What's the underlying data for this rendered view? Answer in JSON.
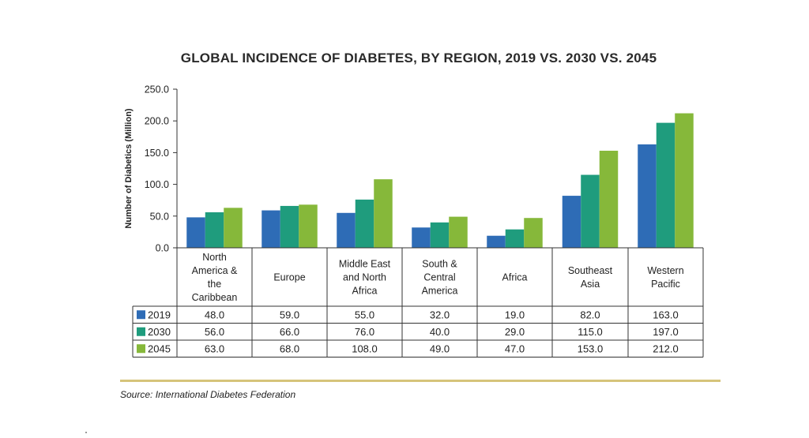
{
  "chart_data": {
    "type": "bar",
    "title": "GLOBAL INCIDENCE OF DIABETES, BY REGION, 2019 VS. 2030 VS. 2045",
    "ylabel": "Number of Diabetics (Million)",
    "xlabel": "",
    "ylim": [
      0,
      250
    ],
    "yticks": [
      "0.0",
      "50.0",
      "100.0",
      "150.0",
      "200.0",
      "250.0"
    ],
    "categories": [
      [
        "North",
        "America &",
        "the",
        "Caribbean"
      ],
      [
        "Europe"
      ],
      [
        "Middle East",
        "and North",
        "Africa"
      ],
      [
        "South &",
        "Central",
        "America"
      ],
      [
        "Africa"
      ],
      [
        "Southeast",
        "Asia"
      ],
      [
        "Western",
        "Pacific"
      ]
    ],
    "series": [
      {
        "name": "2019",
        "color": "#2e6cb6",
        "values": [
          48.0,
          59.0,
          55.0,
          32.0,
          19.0,
          82.0,
          163.0
        ],
        "labels": [
          "48.0",
          "59.0",
          "55.0",
          "32.0",
          "19.0",
          "82.0",
          "163.0"
        ]
      },
      {
        "name": "2030",
        "color": "#1f9c7d",
        "values": [
          56.0,
          66.0,
          76.0,
          40.0,
          29.0,
          115.0,
          197.0
        ],
        "labels": [
          "56.0",
          "66.0",
          "76.0",
          "40.0",
          "29.0",
          "115.0",
          "197.0"
        ]
      },
      {
        "name": "2045",
        "color": "#86b83a",
        "values": [
          63.0,
          68.0,
          108.0,
          49.0,
          47.0,
          153.0,
          212.0
        ],
        "labels": [
          "63.0",
          "68.0",
          "108.0",
          "49.0",
          "47.0",
          "153.0",
          "212.0"
        ]
      }
    ],
    "grid": false,
    "legend": "data-table-left"
  },
  "source_text": "Source: International Diabetes Federation"
}
